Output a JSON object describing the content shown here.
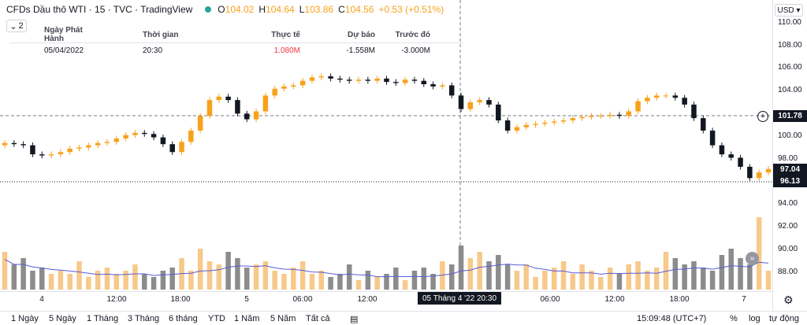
{
  "legend": {
    "title": "CFDs Dầu thô WTI · 15 · TVC · TradingView",
    "o_k": "O",
    "o_v": "104.02",
    "h_k": "H",
    "h_v": "104.64",
    "l_k": "L",
    "l_v": "103.86",
    "c_k": "C",
    "c_v": "104.56",
    "change": "+0.53 (+0.51%)"
  },
  "collapse": {
    "icon": "chevron-down-icon",
    "count": "2"
  },
  "econ_table": {
    "headers": [
      "Ngày Phát Hành",
      "Thời gian",
      "Thực tế",
      "Dự báo",
      "Trước đó"
    ],
    "row": {
      "date": "05/04/2022",
      "time": "20:30",
      "actual": "1.080M",
      "forecast": "-1.558M",
      "previous": "-3.000M"
    }
  },
  "currency": "USD ▾",
  "price_axis": [
    "110.00",
    "108.00",
    "106.00",
    "104.00",
    "102.00",
    "100.00",
    "98.00",
    "96.00",
    "94.00",
    "92.00",
    "90.00",
    "88.00"
  ],
  "crosshair_price": "101.78",
  "last_price": "97.04",
  "low_price": "96.13",
  "time_axis": [
    "4",
    "12:00",
    "18:00",
    "5",
    "06:00",
    "12:00",
    "06:00",
    "12:00",
    "18:00",
    "7"
  ],
  "crosshair_time": "05 Tháng 4 '22   20:30",
  "bottom": {
    "ranges": [
      "1 Ngày",
      "5 Ngày",
      "1 Tháng",
      "3 Tháng",
      "6 tháng",
      "YTD",
      "1 Năm",
      "5 Năm",
      "Tất cả"
    ],
    "time": "15:09:48 (UTC+7)",
    "pct": "%",
    "log": "log",
    "auto": "tự động"
  },
  "colors": {
    "up": "#f7a21b",
    "down": "#131722",
    "volume_up": "#f7c98a",
    "volume_down": "#8c8c8c",
    "ma": "#5b5bd6",
    "red": "#f23645"
  },
  "chart_data": {
    "type": "candlestick",
    "symbol": "CFDs Dầu thô WTI",
    "interval": "15",
    "ylim": [
      87,
      111
    ],
    "price_path": [
      99.4,
      99.3,
      99.2,
      98.4,
      98.3,
      98.4,
      98.6,
      98.9,
      99.0,
      99.2,
      99.4,
      99.5,
      99.8,
      100.1,
      100.3,
      100.2,
      99.9,
      99.3,
      98.6,
      99.5,
      100.5,
      101.8,
      103.2,
      103.5,
      103.2,
      102.0,
      101.5,
      102.2,
      103.6,
      104.2,
      104.4,
      104.5,
      104.9,
      105.2,
      105.3,
      105.1,
      105.0,
      104.9,
      105.0,
      104.9,
      105.1,
      104.8,
      104.7,
      105.0,
      104.9,
      104.6,
      104.4,
      104.5,
      103.6,
      102.4,
      103.0,
      103.2,
      102.8,
      101.4,
      100.5,
      100.8,
      101.0,
      101.1,
      101.2,
      101.3,
      101.4,
      101.6,
      101.7,
      101.8,
      101.8,
      101.9,
      101.8,
      102.2,
      103.1,
      103.4,
      103.6,
      103.6,
      103.4,
      102.8,
      101.6,
      100.5,
      99.2,
      98.4,
      98.1,
      97.3,
      96.3,
      96.8,
      97.1
    ],
    "volume": [
      12,
      8,
      10,
      6,
      7,
      5,
      6,
      5,
      9,
      4,
      6,
      7,
      5,
      6,
      8,
      5,
      4,
      6,
      7,
      10,
      6,
      13,
      9,
      8,
      12,
      10,
      7,
      8,
      9,
      6,
      5,
      7,
      9,
      5,
      6,
      4,
      5,
      8,
      3,
      6,
      4,
      5,
      7,
      3,
      6,
      7,
      5,
      9,
      8,
      14,
      10,
      12,
      9,
      11,
      8,
      6,
      8,
      4,
      6,
      7,
      9,
      5,
      8,
      6,
      4,
      7,
      5,
      8,
      9,
      6,
      7,
      12,
      10,
      8,
      9,
      7,
      6,
      11,
      13,
      10,
      8,
      23,
      6
    ]
  }
}
